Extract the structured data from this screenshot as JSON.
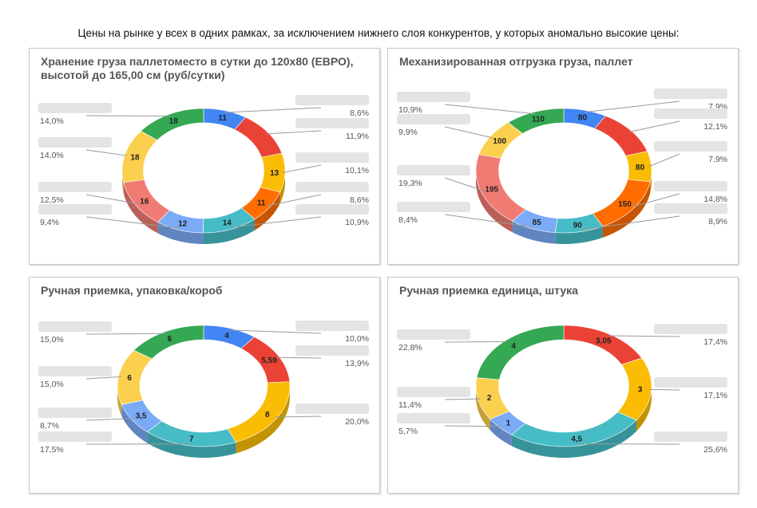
{
  "heading": "Цены на рынке у всех в одних рамках, за исключением нижнего слоя конкурентов, у которых аномально высокие цены:",
  "chart_data": [
    {
      "type": "pie",
      "title": "Хранение груза паллетоместо в сутки до 120х80 (ЕВРО), высотой до 165,00 см (руб/сутки)",
      "slices": [
        {
          "value": "11",
          "pct": "8,6%",
          "color": "#4285f4"
        },
        {
          "value": "",
          "pct": "11,9%",
          "color": "#ea4335"
        },
        {
          "value": "13",
          "pct": "10,1%",
          "color": "#fbbc04"
        },
        {
          "value": "11",
          "pct": "8,6%",
          "color": "#ff6d01"
        },
        {
          "value": "14",
          "pct": "10,9%",
          "color": "#46bdc6"
        },
        {
          "value": "12",
          "pct": "9,4%",
          "color": "#7baaf7"
        },
        {
          "value": "16",
          "pct": "12,5%",
          "color": "#f07b72"
        },
        {
          "value": "18",
          "pct": "14,0%",
          "color": "#fcd04f"
        },
        {
          "value": "18",
          "pct": "14,0%",
          "color": "#34a853"
        }
      ]
    },
    {
      "type": "pie",
      "title": "Механизированная отгрузка груза, паллет",
      "slices": [
        {
          "value": "80",
          "pct": "7,9%",
          "color": "#4285f4"
        },
        {
          "value": "",
          "pct": "12,1%",
          "color": "#ea4335"
        },
        {
          "value": "80",
          "pct": "7,9%",
          "color": "#fbbc04"
        },
        {
          "value": "150",
          "pct": "14,8%",
          "color": "#ff6d01"
        },
        {
          "value": "90",
          "pct": "8,9%",
          "color": "#46bdc6"
        },
        {
          "value": "85",
          "pct": "8,4%",
          "color": "#7baaf7"
        },
        {
          "value": "195",
          "pct": "19,3%",
          "color": "#f07b72"
        },
        {
          "value": "100",
          "pct": "9,9%",
          "color": "#fcd04f"
        },
        {
          "value": "110",
          "pct": "10,9%",
          "color": "#34a853"
        }
      ]
    },
    {
      "type": "pie",
      "title": "Ручная приемка, упаковка/короб",
      "slices": [
        {
          "value": "4",
          "pct": "10,0%",
          "color": "#4285f4"
        },
        {
          "value": "5,59",
          "pct": "13,9%",
          "color": "#ea4335"
        },
        {
          "value": "8",
          "pct": "20,0%",
          "color": "#fbbc04"
        },
        {
          "value": "7",
          "pct": "17,5%",
          "color": "#46bdc6"
        },
        {
          "value": "3,5",
          "pct": "8,7%",
          "color": "#7baaf7"
        },
        {
          "value": "6",
          "pct": "15,0%",
          "color": "#fcd04f"
        },
        {
          "value": "6",
          "pct": "15,0%",
          "color": "#34a853"
        }
      ]
    },
    {
      "type": "pie",
      "title": "Ручная приемка единица, штука",
      "slices": [
        {
          "value": "3,05",
          "pct": "17,4%",
          "color": "#ea4335"
        },
        {
          "value": "3",
          "pct": "17,1%",
          "color": "#fbbc04"
        },
        {
          "value": "4,5",
          "pct": "25,6%",
          "color": "#46bdc6"
        },
        {
          "value": "1",
          "pct": "5,7%",
          "color": "#7baaf7"
        },
        {
          "value": "2",
          "pct": "11,4%",
          "color": "#fcd04f"
        },
        {
          "value": "4",
          "pct": "22,8%",
          "color": "#34a853"
        }
      ]
    }
  ]
}
